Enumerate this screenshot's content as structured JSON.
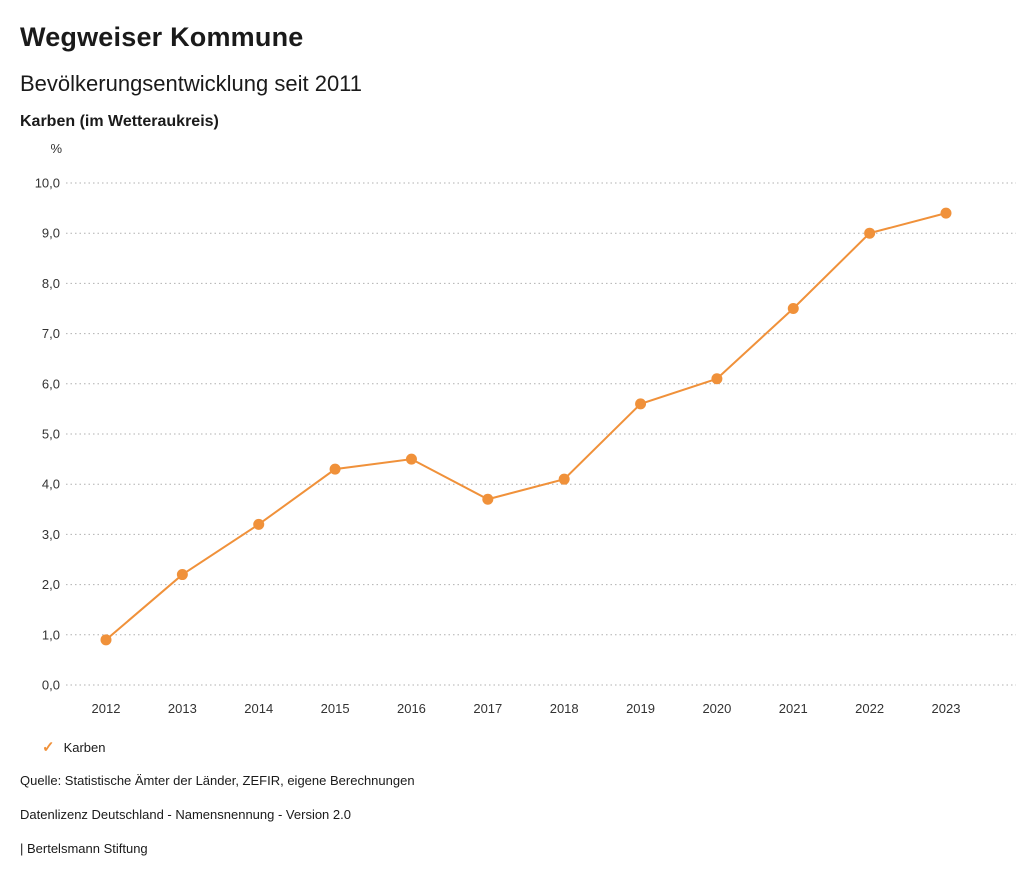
{
  "header": {
    "title": "Wegweiser Kommune",
    "subtitle": "Bevölkerungsentwicklung seit 2011",
    "location": "Karben (im Wetteraukreis)"
  },
  "chart_data": {
    "type": "line",
    "unit_label": "%",
    "categories": [
      "2012",
      "2013",
      "2014",
      "2015",
      "2016",
      "2017",
      "2018",
      "2019",
      "2020",
      "2021",
      "2022",
      "2023"
    ],
    "series": [
      {
        "name": "Karben",
        "values": [
          0.9,
          2.2,
          3.2,
          4.3,
          4.5,
          3.7,
          4.1,
          5.6,
          6.1,
          7.5,
          9.0,
          9.4
        ]
      }
    ],
    "ylim": [
      0,
      10
    ],
    "ytick_step": 1,
    "grid": "dotted-horizontal",
    "legend_position": "bottom-left",
    "line_color": "#f0913a",
    "grid_color": "#b0b0b0",
    "tick_text_color": "#333333"
  },
  "legend": {
    "items": [
      {
        "label": "Karben",
        "check_icon": "✓",
        "color": "#f0913a"
      }
    ]
  },
  "footer": {
    "source": "Quelle: Statistische Ämter der Länder, ZEFIR, eigene Berechnungen",
    "license": "Datenlizenz Deutschland - Namensnennung - Version 2.0",
    "branding": "| Bertelsmann Stiftung"
  }
}
